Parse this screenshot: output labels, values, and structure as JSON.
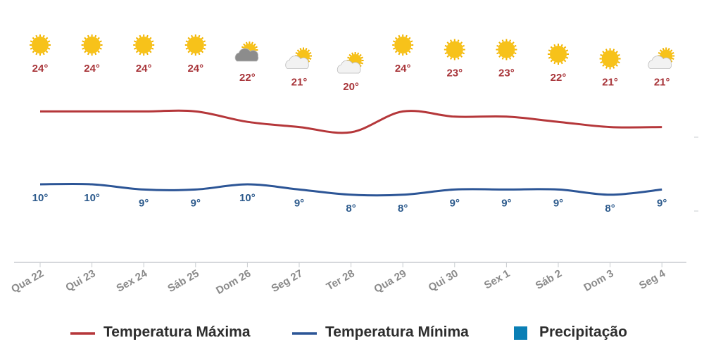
{
  "chart_data": {
    "type": "line",
    "categories": [
      "Qua 22",
      "Qui 23",
      "Sex 24",
      "Sáb 25",
      "Dom 26",
      "Seg 27",
      "Ter 28",
      "Qua 29",
      "Qui 30",
      "Sex 1",
      "Sáb 2",
      "Dom 3",
      "Seg 4"
    ],
    "series": [
      {
        "name": "Temperatura Máxima",
        "color": "#b5373a",
        "values": [
          24,
          24,
          24,
          24,
          22,
          21,
          20,
          24,
          23,
          23,
          22,
          21,
          21
        ],
        "value_labels": [
          "24°",
          "24°",
          "24°",
          "24°",
          "22°",
          "21°",
          "20°",
          "24°",
          "23°",
          "23°",
          "22°",
          "21°",
          "21°"
        ]
      },
      {
        "name": "Temperatura Mínima",
        "color": "#2c5596",
        "values": [
          10,
          10,
          9,
          9,
          10,
          9,
          8,
          8,
          9,
          9,
          9,
          8,
          9
        ],
        "value_labels": [
          "10°",
          "10°",
          "9°",
          "9°",
          "10°",
          "9°",
          "8°",
          "8°",
          "9°",
          "9°",
          "9°",
          "8°",
          "9°"
        ]
      },
      {
        "name": "Precipitação",
        "color": "#0a7fb5",
        "values": [
          null,
          null,
          null,
          null,
          null,
          null,
          null,
          null,
          null,
          null,
          null,
          null,
          null
        ]
      }
    ],
    "ylim": [
      -5,
      30
    ]
  }
}
